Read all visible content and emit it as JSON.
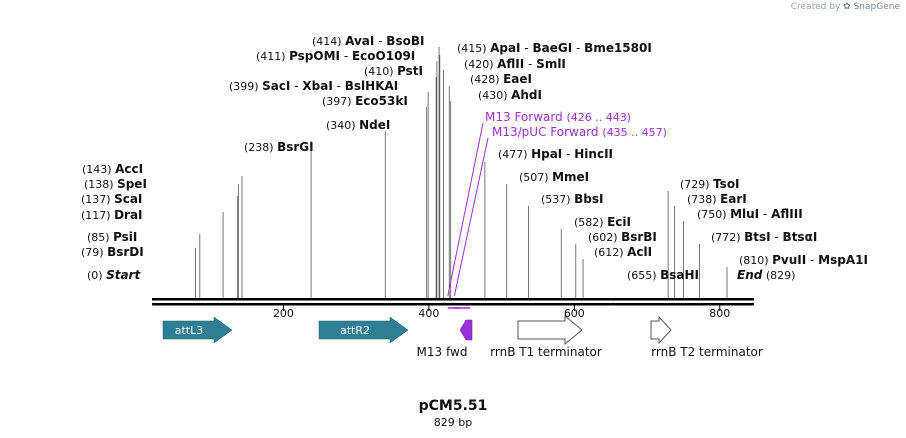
{
  "credit": {
    "prefix": "Created by",
    "brand": "SnapGene"
  },
  "map": {
    "name": "pCM5.51",
    "length_label": "829 bp",
    "length_bp": 829,
    "ticks": [
      200,
      400,
      600,
      800
    ],
    "colors": {
      "site_text": "#111111",
      "primer": "#9b30d9",
      "attl3": "#2e7f93",
      "attr2": "#2e7f93",
      "terminator": "#ffffff",
      "backbone": "#000000"
    }
  },
  "sites": [
    {
      "pos_label": "(0)",
      "names": [
        "Start"
      ],
      "style": "italic"
    },
    {
      "pos_label": "(79)",
      "names": [
        "BsrDI"
      ],
      "pos": 79
    },
    {
      "pos_label": "(85)",
      "names": [
        "PsiI"
      ],
      "pos": 85
    },
    {
      "pos_label": "(117)",
      "names": [
        "DraI"
      ],
      "pos": 117
    },
    {
      "pos_label": "(137)",
      "names": [
        "ScaI"
      ],
      "pos": 137
    },
    {
      "pos_label": "(138)",
      "names": [
        "SpeI"
      ],
      "pos": 138
    },
    {
      "pos_label": "(143)",
      "names": [
        "AccI"
      ],
      "pos": 143
    },
    {
      "pos_label": "(238)",
      "names": [
        "BsrGI"
      ],
      "pos": 238
    },
    {
      "pos_label": "(340)",
      "names": [
        "NdeI"
      ],
      "pos": 340
    },
    {
      "pos_label": "(397)",
      "names": [
        "Eco53kI"
      ],
      "pos": 397
    },
    {
      "pos_label": "(399)",
      "names": [
        "SacI",
        "XbaI",
        "BslHKAI"
      ],
      "pos": 399
    },
    {
      "pos_label": "(410)",
      "names": [
        "PstI"
      ],
      "pos": 410
    },
    {
      "pos_label": "(411)",
      "names": [
        "PspOMI",
        "EcoO109I"
      ],
      "pos": 411
    },
    {
      "pos_label": "(414)",
      "names": [
        "AvaI",
        "BsoBI"
      ],
      "pos": 414
    },
    {
      "pos_label": "(415)",
      "names": [
        "ApaI",
        "BaeGI",
        "Bme1580I"
      ],
      "pos": 415
    },
    {
      "pos_label": "(420)",
      "names": [
        "AflII",
        "SmlI"
      ],
      "pos": 420
    },
    {
      "pos_label": "(428)",
      "names": [
        "EaeI"
      ],
      "pos": 428
    },
    {
      "pos_label": "(430)",
      "names": [
        "AhdI"
      ],
      "pos": 430
    },
    {
      "pos_label": "(477)",
      "names": [
        "HpaI",
        "HincII"
      ],
      "pos": 477
    },
    {
      "pos_label": "(507)",
      "names": [
        "MmeI"
      ],
      "pos": 507
    },
    {
      "pos_label": "(537)",
      "names": [
        "BbsI"
      ],
      "pos": 537
    },
    {
      "pos_label": "(582)",
      "names": [
        "EciI"
      ],
      "pos": 582
    },
    {
      "pos_label": "(602)",
      "names": [
        "BsrBI"
      ],
      "pos": 602
    },
    {
      "pos_label": "(612)",
      "names": [
        "AclI"
      ],
      "pos": 612
    },
    {
      "pos_label": "(655)",
      "names": [
        "BsaHI"
      ],
      "pos": 655
    },
    {
      "pos_label": "(729)",
      "names": [
        "TsoI"
      ],
      "pos": 729
    },
    {
      "pos_label": "(738)",
      "names": [
        "EarI"
      ],
      "pos": 738
    },
    {
      "pos_label": "(750)",
      "names": [
        "MluI",
        "AflIII"
      ],
      "pos": 750
    },
    {
      "pos_label": "(772)",
      "names": [
        "BtsI",
        "BtsαI"
      ],
      "pos": 772
    },
    {
      "pos_label": "(810)",
      "names": [
        "PvuII",
        "MspA1I"
      ],
      "pos": 810
    },
    {
      "pos_label": "(829)",
      "names": [
        "End"
      ],
      "style": "italic"
    }
  ],
  "primers": [
    {
      "name": "M13 Forward",
      "range": "(426 .. 443)",
      "start": 426,
      "end": 443
    },
    {
      "name": "M13/pUC Forward",
      "range": "(435 .. 457)",
      "start": 435,
      "end": 457
    }
  ],
  "features": [
    {
      "id": "attl3",
      "label": "attL3"
    },
    {
      "id": "attr2",
      "label": "attR2"
    },
    {
      "id": "m13fwd",
      "label": "M13 fwd"
    },
    {
      "id": "rrnbt1",
      "label": "rrnB T1 terminator"
    },
    {
      "id": "rrnbt2",
      "label": "rrnB T2 terminator"
    }
  ]
}
